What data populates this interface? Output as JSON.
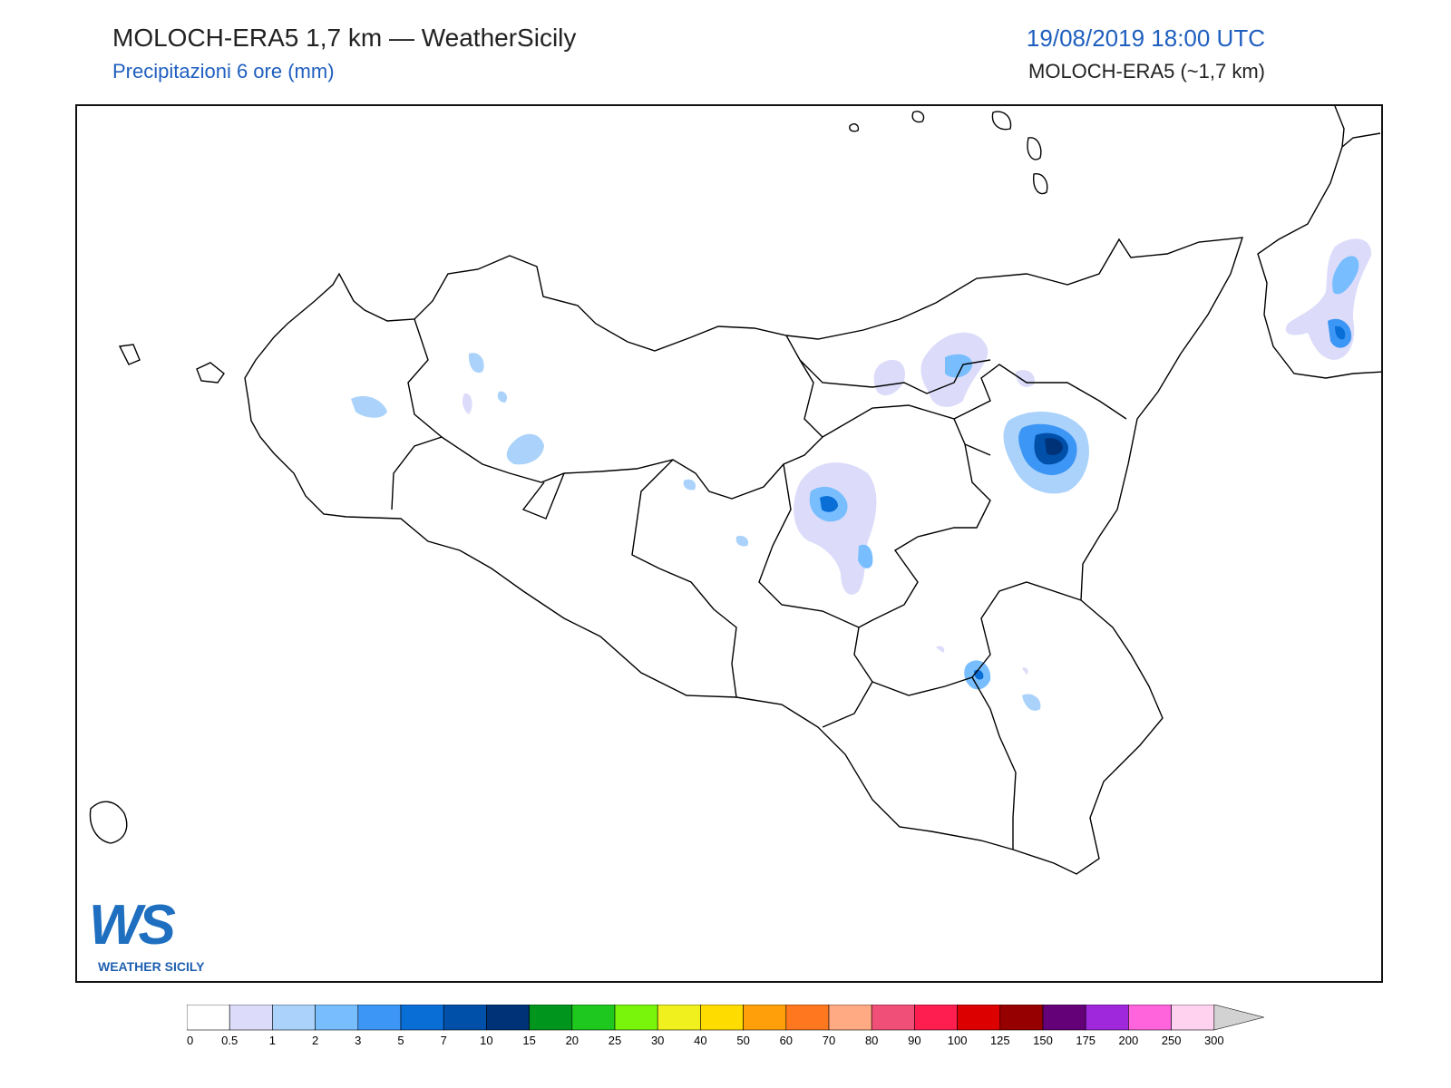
{
  "header": {
    "title": "MOLOCH-ERA5 1,7 km — WeatherSicily",
    "subtitle": "Precipitazioni 6 ore (mm)",
    "datetime": "19/08/2019 18:00 UTC",
    "model": "MOLOCH-ERA5 (~1,7 km)"
  },
  "logo": {
    "letters": "WS",
    "text": "WEATHER SICILY"
  },
  "legend": {
    "ticks": [
      "0",
      "0.5",
      "1",
      "2",
      "3",
      "5",
      "7",
      "10",
      "15",
      "20",
      "25",
      "30",
      "40",
      "50",
      "60",
      "70",
      "80",
      "90",
      "100",
      "125",
      "150",
      "175",
      "200",
      "250",
      "300"
    ],
    "colors": [
      "#ffffff",
      "#dcdcfa",
      "#aad2fa",
      "#78beff",
      "#3c96f5",
      "#0a6ed7",
      "#0050aa",
      "#003278",
      "#00961e",
      "#1ec81e",
      "#78f50a",
      "#f0f01e",
      "#ffdc00",
      "#ffa00a",
      "#ff7820",
      "#ffaa82",
      "#f05078",
      "#ff1e50",
      "#dc0000",
      "#960000",
      "#640078",
      "#a028dc",
      "#ff64dc",
      "#ffd2f0"
    ],
    "extend_color": "#d2d2d2"
  },
  "map": {
    "region": "Sicilia",
    "colors": {
      "outline": "#000000",
      "light": "#dcdcfa",
      "pale_blue": "#aad2fa",
      "sky": "#78beff",
      "blue": "#3c96f5",
      "mid_blue": "#0a6ed7",
      "dark_blue": "#0050aa",
      "navy": "#003278"
    }
  }
}
